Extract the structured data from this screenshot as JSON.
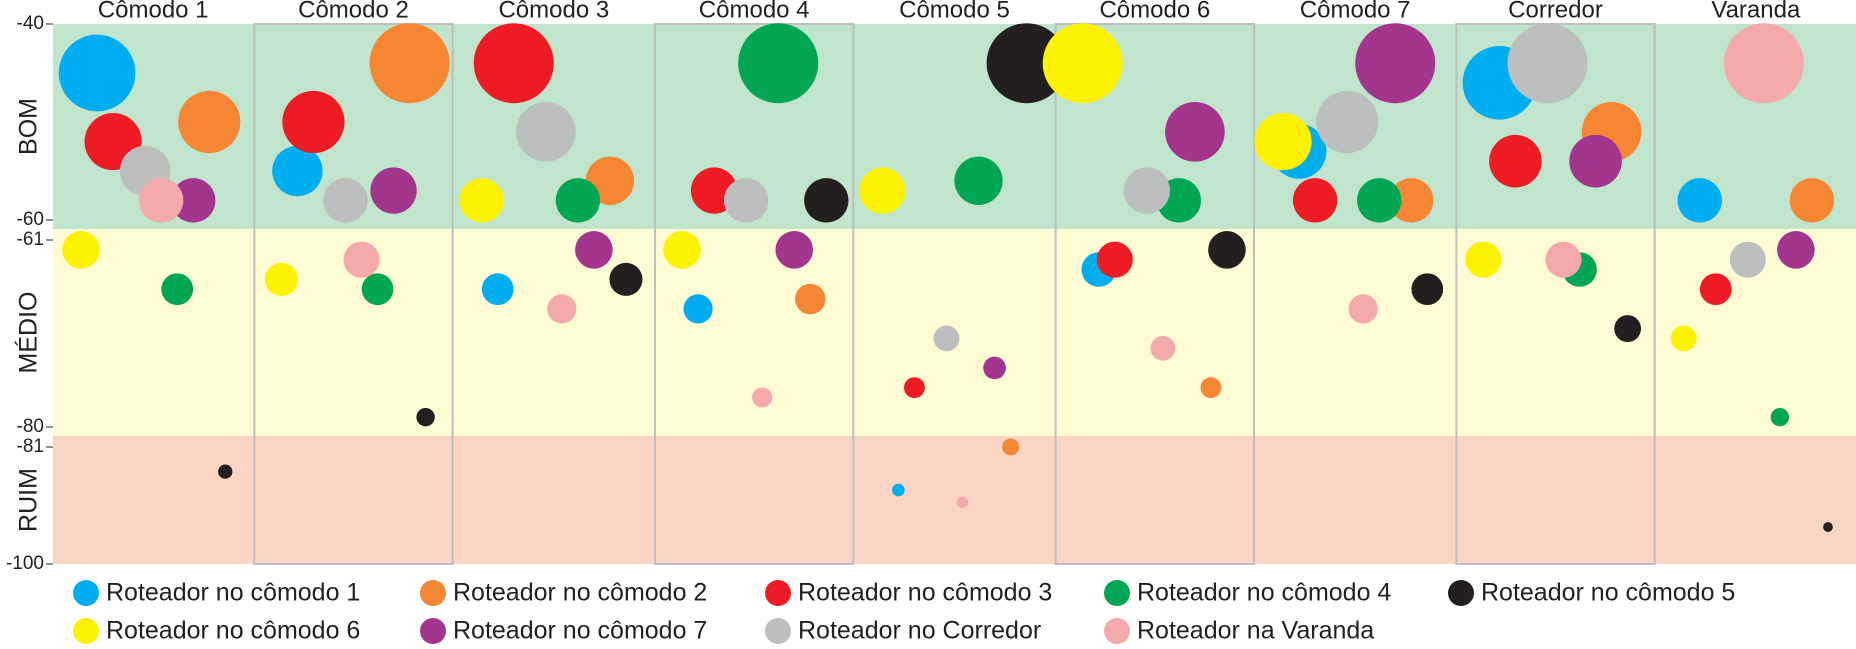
{
  "chart_data": {
    "type": "dot",
    "categories": [
      "Cômodo 1",
      "Cômodo 2",
      "Cômodo 3",
      "Cômodo 4",
      "Cômodo 5",
      "Cômodo 6",
      "Cômodo 7",
      "Corredor",
      "Varanda"
    ],
    "ylim": [
      -100,
      -40
    ],
    "yticks": [
      -40,
      -60,
      -61,
      -80,
      -81,
      -100
    ],
    "bands": [
      {
        "label": "BOM",
        "range": [
          -40,
          -60
        ],
        "color": "#c0e4cc"
      },
      {
        "label": "MÉDIO",
        "range": [
          -61,
          -80
        ],
        "color": "#fffbd2"
      },
      {
        "label": "RUIM",
        "range": [
          -81,
          -100
        ],
        "color": "#fbd5c3"
      }
    ],
    "series": [
      {
        "name": "Roteador no cômodo 1",
        "color": "#00aeef",
        "values": [
          -45,
          -55,
          -66,
          -68,
          -88,
          -64,
          -53,
          -46,
          -58
        ]
      },
      {
        "name": "Roteador no cômodo 2",
        "color": "#f58634",
        "values": [
          -50,
          -44,
          -56,
          -67,
          -81,
          -76,
          -58,
          -51,
          -58
        ]
      },
      {
        "name": "Roteador no cômodo 3",
        "color": "#ed1c24",
        "values": [
          -52,
          -50,
          -44,
          -57,
          -76,
          -63,
          -58,
          -54,
          -66
        ]
      },
      {
        "name": "Roteador no cômodo 4",
        "color": "#00a651",
        "values": [
          -66,
          -66,
          -58,
          -44,
          -56,
          -58,
          -58,
          -64,
          -79
        ]
      },
      {
        "name": "Roteador no cômodo 5",
        "color": "#231f20",
        "values": [
          -85,
          -79,
          -65,
          -58,
          -44,
          -62,
          -66,
          -70,
          -94
        ]
      },
      {
        "name": "Roteador no cômodo 6",
        "color": "#fff200",
        "values": [
          -62,
          -65,
          -58,
          -62,
          -57,
          -44,
          -52,
          -63,
          -71
        ]
      },
      {
        "name": "Roteador no cômodo 7",
        "color": "#a3358f",
        "values": [
          -58,
          -57,
          -62,
          -62,
          -74,
          -51,
          -44,
          -54,
          -62
        ]
      },
      {
        "name": "Roteador no Corredor",
        "color": "#bcbec0",
        "values": [
          -55,
          -58,
          -51,
          -58,
          -71,
          -57,
          -50,
          -44,
          -63
        ]
      },
      {
        "name": "Roteador na Varanda",
        "color": "#f4a9ab",
        "values": [
          -58,
          -63,
          -68,
          -77,
          -90,
          -72,
          -68,
          -63,
          -44
        ]
      }
    ]
  }
}
